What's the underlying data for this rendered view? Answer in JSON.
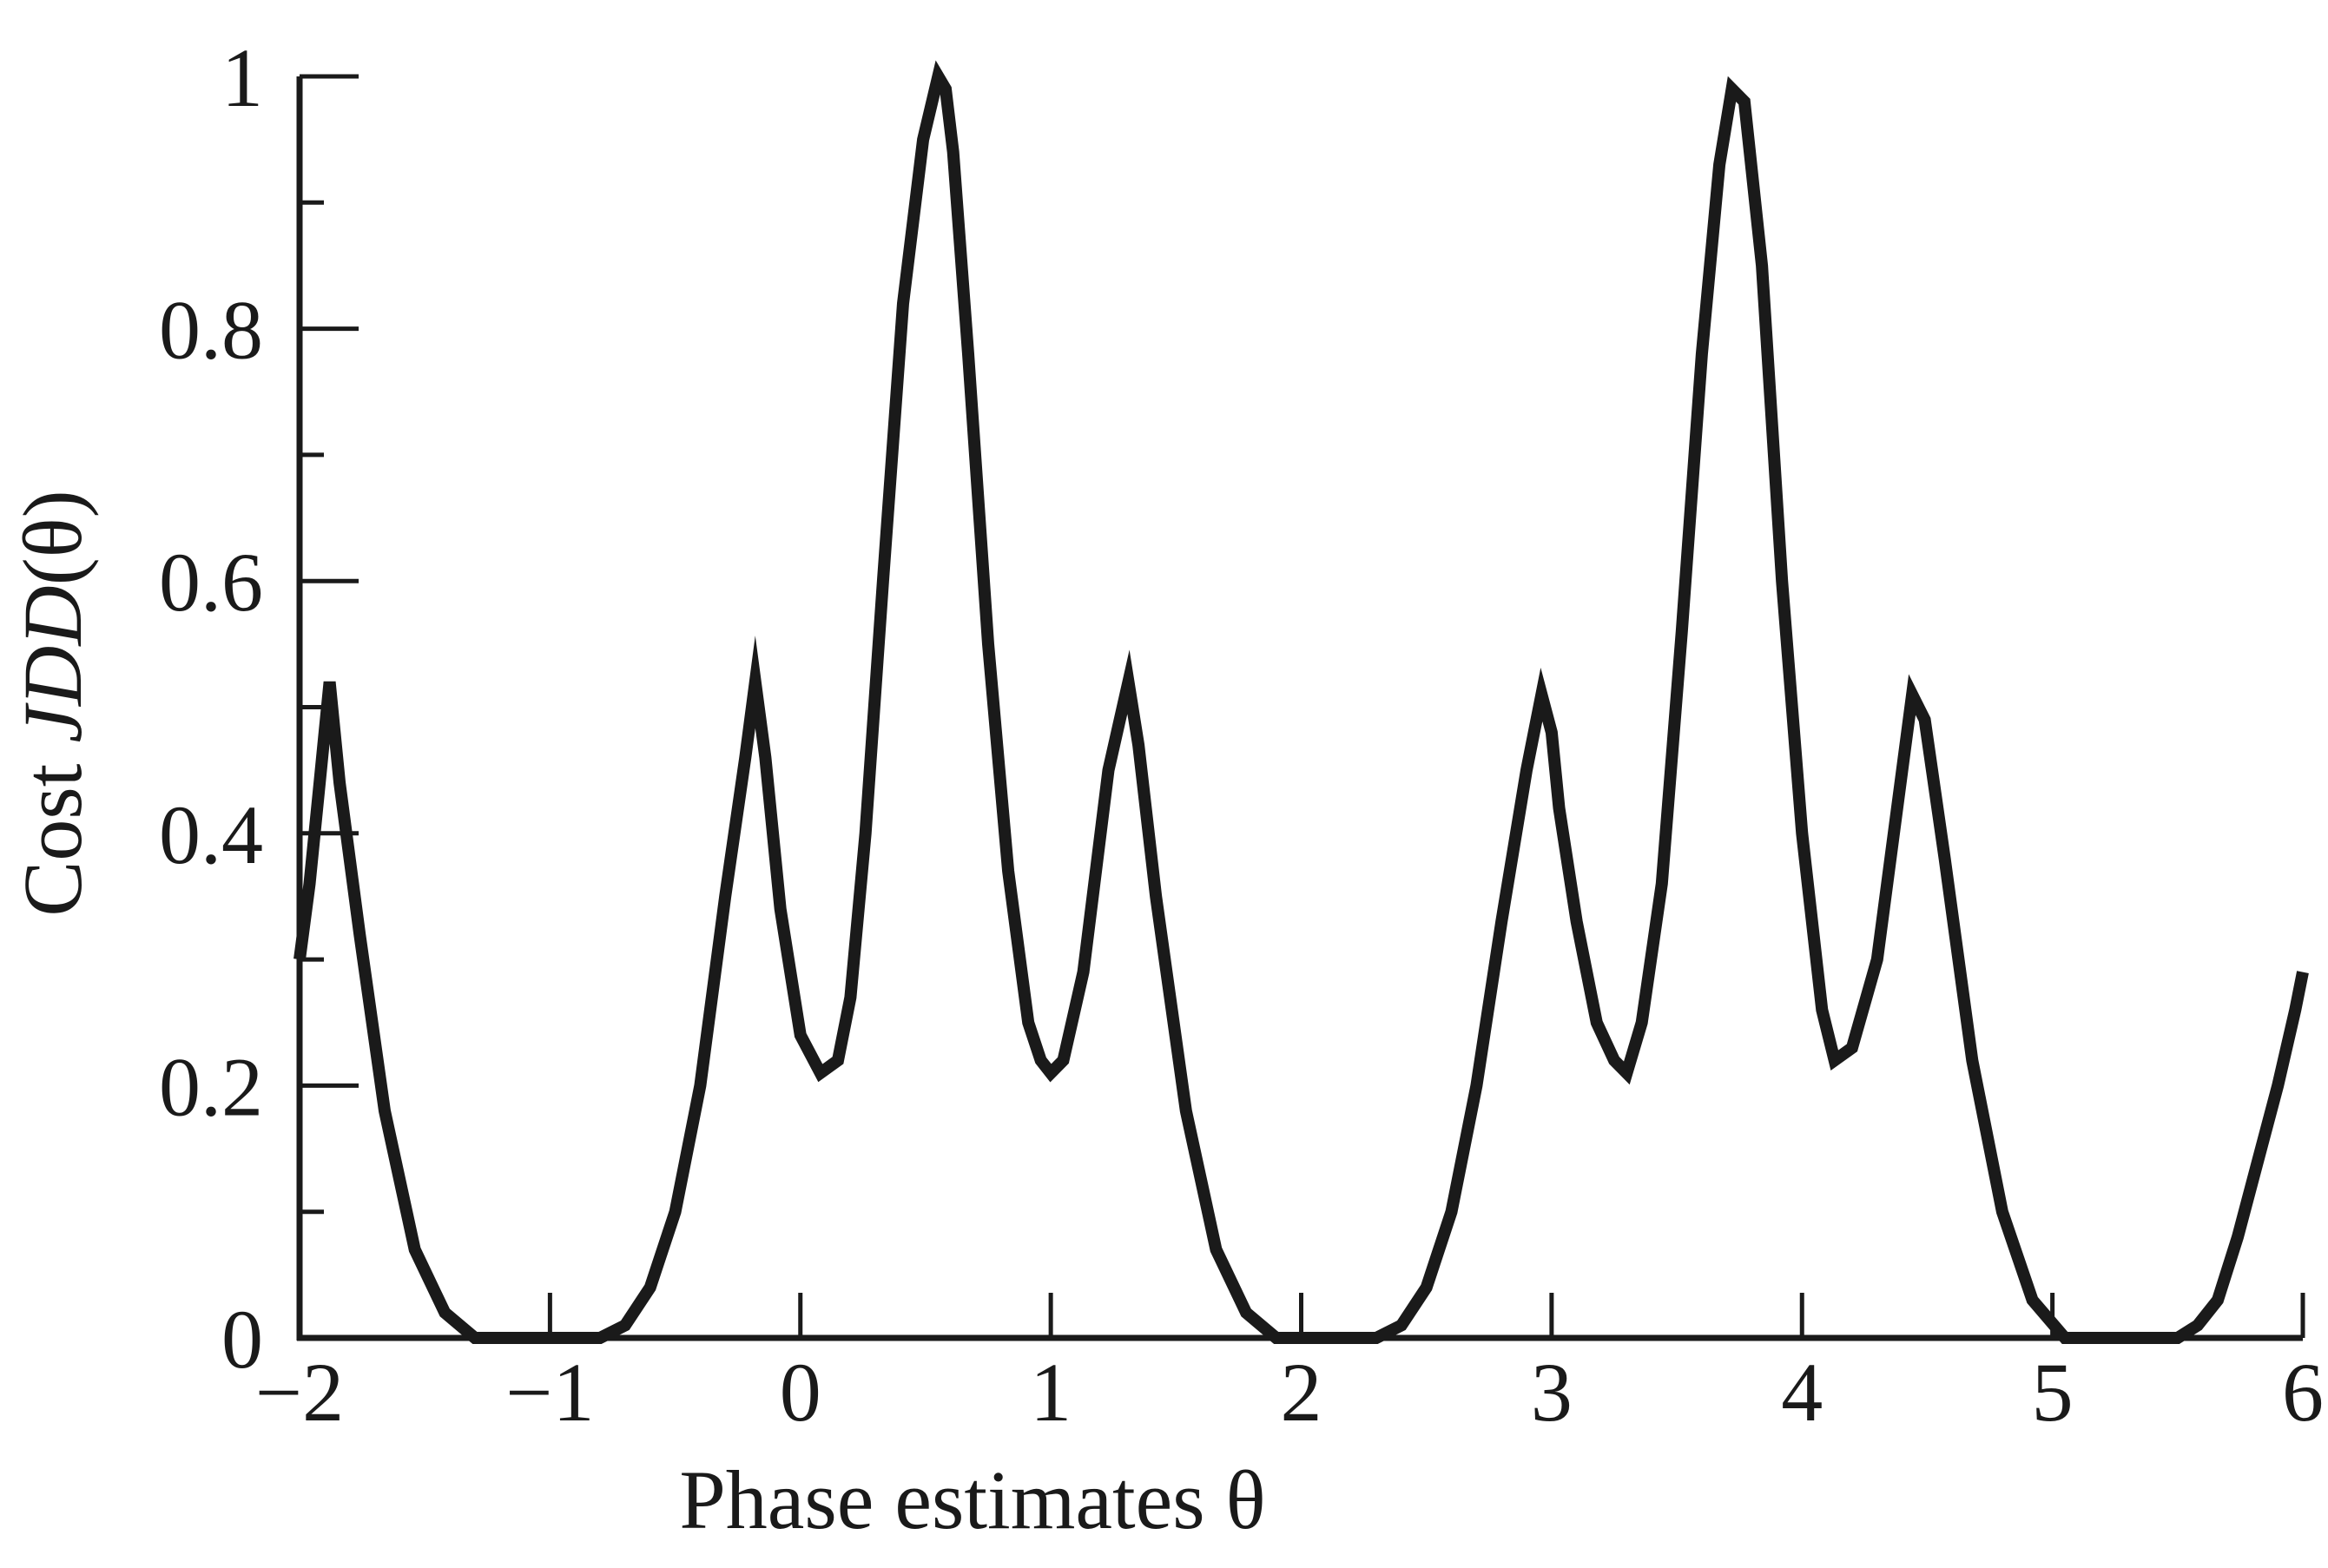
{
  "chart_data": {
    "type": "line",
    "title": "",
    "xlabel": "Phase estimates θ",
    "ylabel": {
      "prefix": "Cost  ",
      "symbol": "J",
      "subscript": "DD",
      "suffix": "(θ)"
    },
    "xlim": [
      -2,
      6
    ],
    "ylim": [
      0,
      1
    ],
    "xticks": [
      -2,
      -1,
      0,
      1,
      2,
      3,
      4,
      5,
      6
    ],
    "xtick_labels": [
      "−2",
      "−1",
      "0",
      "1",
      "2",
      "3",
      "4",
      "5",
      "6"
    ],
    "yticks_labeled": [
      0,
      0.2,
      0.4,
      0.6,
      0.8,
      1
    ],
    "ytick_labels": [
      "0",
      "0.2",
      "0.4",
      "0.6",
      "0.8",
      "1"
    ],
    "yticks_minor": [
      0.1,
      0.3,
      0.5,
      0.7,
      0.9
    ],
    "grid": false,
    "legend": "none",
    "series": [
      {
        "color": "#1a1a1a",
        "x": [
          -2.0,
          -1.96,
          -1.92,
          -1.88,
          -1.84,
          -1.76,
          -1.66,
          -1.54,
          -1.42,
          -1.3,
          -1.2,
          -1.1,
          -1.0,
          -0.9,
          -0.8,
          -0.7,
          -0.6,
          -0.5,
          -0.4,
          -0.3,
          -0.22,
          -0.18,
          -0.14,
          -0.08,
          0.0,
          0.08,
          0.15,
          0.2,
          0.26,
          0.33,
          0.41,
          0.49,
          0.55,
          0.58,
          0.61,
          0.67,
          0.75,
          0.83,
          0.91,
          0.96,
          1.0,
          1.05,
          1.13,
          1.23,
          1.31,
          1.35,
          1.42,
          1.54,
          1.66,
          1.78,
          1.9,
          2.0,
          2.1,
          2.2,
          2.3,
          2.4,
          2.5,
          2.6,
          2.7,
          2.8,
          2.9,
          2.96,
          3.0,
          3.03,
          3.1,
          3.18,
          3.25,
          3.3,
          3.36,
          3.44,
          3.52,
          3.6,
          3.67,
          3.72,
          3.77,
          3.84,
          3.92,
          4.0,
          4.08,
          4.13,
          4.2,
          4.3,
          4.44,
          4.49,
          4.57,
          4.68,
          4.8,
          4.92,
          5.05,
          5.18,
          5.3,
          5.4,
          5.5,
          5.58,
          5.66,
          5.74,
          5.82,
          5.9,
          5.97,
          6.0
        ],
        "y": [
          0.3,
          0.36,
          0.44,
          0.52,
          0.44,
          0.32,
          0.18,
          0.07,
          0.02,
          0.0,
          0.0,
          0.0,
          0.0,
          0.0,
          0.0,
          0.01,
          0.04,
          0.1,
          0.2,
          0.35,
          0.46,
          0.52,
          0.46,
          0.34,
          0.24,
          0.21,
          0.22,
          0.27,
          0.4,
          0.6,
          0.82,
          0.95,
          1.0,
          0.99,
          0.94,
          0.78,
          0.55,
          0.37,
          0.25,
          0.22,
          0.21,
          0.22,
          0.29,
          0.45,
          0.52,
          0.47,
          0.35,
          0.18,
          0.07,
          0.02,
          0.0,
          0.0,
          0.0,
          0.0,
          0.0,
          0.01,
          0.04,
          0.1,
          0.2,
          0.33,
          0.45,
          0.51,
          0.48,
          0.42,
          0.33,
          0.25,
          0.22,
          0.21,
          0.25,
          0.36,
          0.56,
          0.78,
          0.93,
          0.99,
          0.98,
          0.85,
          0.6,
          0.4,
          0.26,
          0.22,
          0.23,
          0.3,
          0.51,
          0.49,
          0.38,
          0.22,
          0.1,
          0.03,
          0.0,
          0.0,
          0.0,
          0.0,
          0.0,
          0.01,
          0.03,
          0.08,
          0.14,
          0.2,
          0.26,
          0.29
        ]
      }
    ]
  }
}
